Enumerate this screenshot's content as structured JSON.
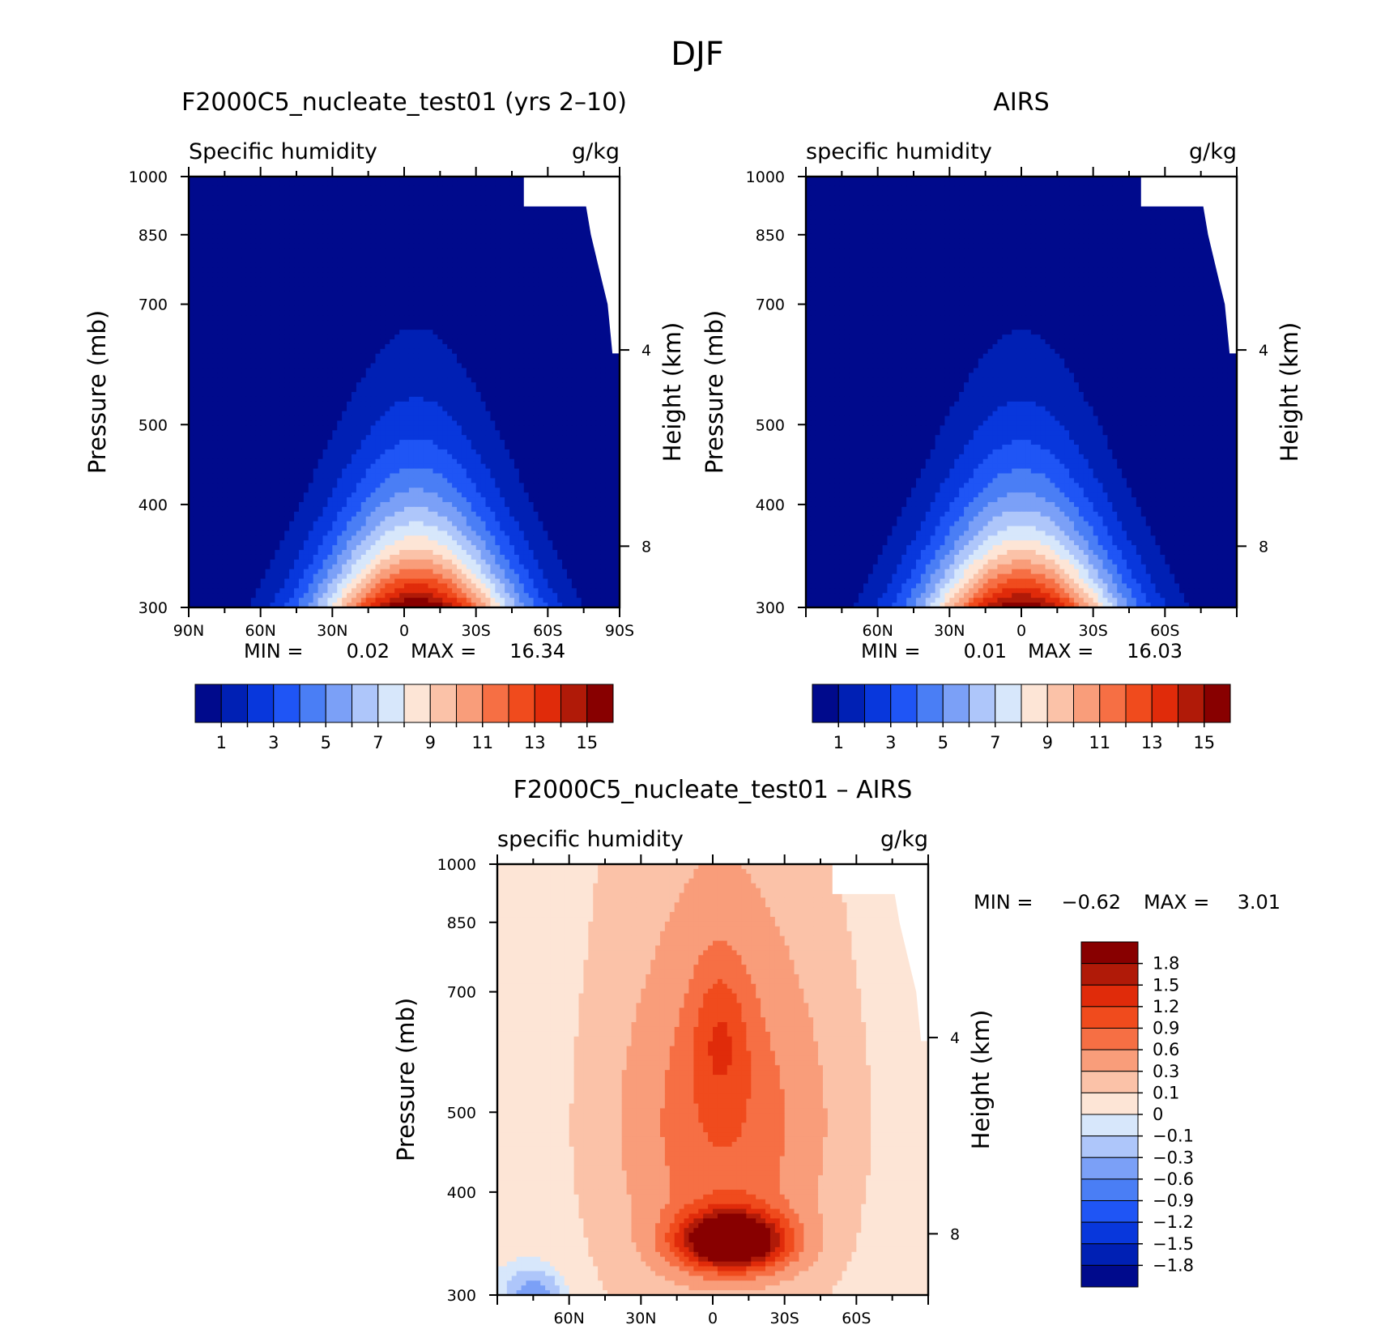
{
  "figure": {
    "title": "DJF"
  },
  "chart_data": [
    {
      "type": "heatmap",
      "title": "F2000C5_nucleate_test01 (yrs 2–10)",
      "left_label": "Specific humidity",
      "right_label": "g/kg",
      "xlabel": "",
      "ylabel": "Pressure (mb)",
      "y2label": "Height (km)",
      "x_ticks": [
        "90N",
        "60N",
        "30N",
        "0",
        "30S",
        "60S",
        "90S"
      ],
      "y_ticks": [
        "300",
        "400",
        "500",
        "700",
        "850",
        "1000"
      ],
      "y2_ticks": [
        "8",
        "4"
      ],
      "xlim": [
        90,
        -90
      ],
      "ylim": [
        1000,
        300
      ],
      "y_scale": "log",
      "stats": {
        "min_label": "MIN =",
        "min": "0.02",
        "max_label": "MAX =",
        "max": "16.34"
      },
      "colorbar": {
        "labels": [
          "1",
          "3",
          "5",
          "7",
          "9",
          "11",
          "13",
          "15"
        ],
        "orientation": "horizontal"
      },
      "peak": {
        "lat": 0,
        "value": 16.34
      }
    },
    {
      "type": "heatmap",
      "title": "AIRS",
      "left_label": "specific humidity",
      "right_label": "g/kg",
      "xlabel": "",
      "ylabel": "Pressure (mb)",
      "y2label": "Height (km)",
      "x_ticks": [
        "60N",
        "30N",
        "0",
        "30S",
        "60S"
      ],
      "y_ticks": [
        "300",
        "400",
        "500",
        "700",
        "850",
        "1000"
      ],
      "y2_ticks": [
        "8",
        "4"
      ],
      "xlim": [
        90,
        -90
      ],
      "ylim": [
        1000,
        300
      ],
      "y_scale": "log",
      "stats": {
        "min_label": "MIN =",
        "min": "0.01",
        "max_label": "MAX =",
        "max": "16.03"
      },
      "colorbar": {
        "labels": [
          "1",
          "3",
          "5",
          "7",
          "9",
          "11",
          "13",
          "15"
        ],
        "orientation": "horizontal"
      },
      "peak": {
        "lat": 0,
        "value": 16.03
      }
    },
    {
      "type": "heatmap",
      "title": "F2000C5_nucleate_test01 – AIRS",
      "left_label": "specific humidity",
      "right_label": "g/kg",
      "xlabel": "",
      "ylabel": "Pressure (mb)",
      "y2label": "Height (km)",
      "x_ticks": [
        "60N",
        "30N",
        "0",
        "30S",
        "60S"
      ],
      "y_ticks": [
        "300",
        "400",
        "500",
        "700",
        "850",
        "1000"
      ],
      "y2_ticks": [
        "8",
        "4"
      ],
      "xlim": [
        90,
        -90
      ],
      "ylim": [
        1000,
        300
      ],
      "y_scale": "log",
      "stats": {
        "min_label": "MIN =",
        "min": "−0.62",
        "max_label": "MAX =",
        "max": "3.01"
      },
      "colorbar": {
        "labels": [
          "1.8",
          "1.5",
          "1.2",
          "0.9",
          "0.6",
          "0.3",
          "0.1",
          "0",
          "−0.1",
          "−0.3",
          "−0.6",
          "−0.9",
          "−1.2",
          "−1.5",
          "−1.8"
        ],
        "orientation": "vertical"
      }
    }
  ],
  "colors": {
    "sequential": [
      "#000a8c",
      "#0020b4",
      "#0837dc",
      "#1f55f5",
      "#4a7ef5",
      "#7ba0f7",
      "#aec6fa",
      "#d7e7fb",
      "#fde5d6",
      "#fbc2a8",
      "#f99d7a",
      "#f66f44",
      "#f04b1d",
      "#e02b0a",
      "#b01a08",
      "#880000"
    ],
    "diverging": [
      "#000a8c",
      "#0020b4",
      "#0837dc",
      "#1f55f5",
      "#4a7ef5",
      "#7ba0f7",
      "#aec6fa",
      "#d7e7fb",
      "#fde5d6",
      "#fbc2a8",
      "#f99d7a",
      "#f66f44",
      "#f04b1d",
      "#e02b0a",
      "#b01a08",
      "#880000"
    ]
  }
}
